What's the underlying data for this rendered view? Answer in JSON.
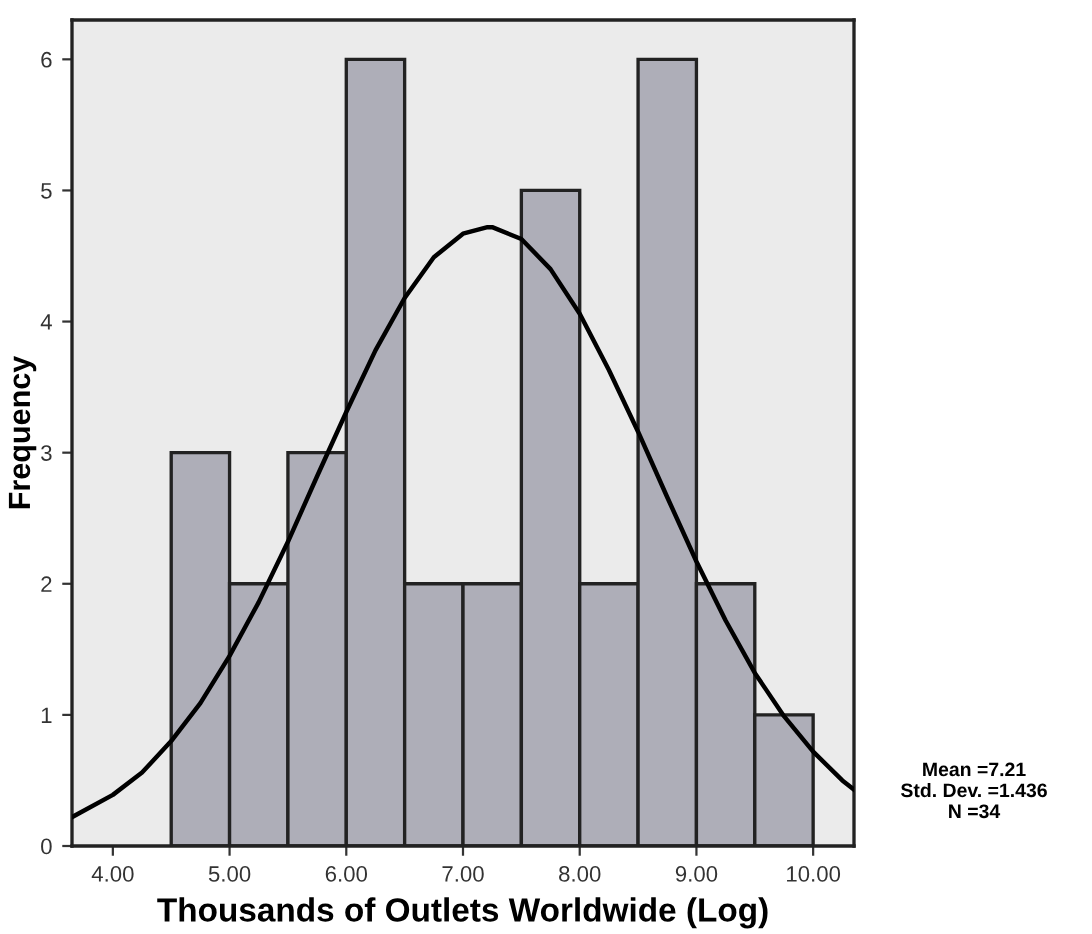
{
  "chart_data": {
    "type": "histogram",
    "xlabel": "Thousands of Outlets Worldwide (Log)",
    "ylabel": "Frequency",
    "bins": [
      4.5,
      5.0,
      5.5,
      6.0,
      6.5,
      7.0,
      7.5,
      8.0,
      8.5,
      9.0,
      9.5,
      10.0
    ],
    "values": [
      3,
      2,
      3,
      6,
      2,
      2,
      5,
      2,
      6,
      2,
      1
    ],
    "color": "#aeaeb8",
    "series": [
      {
        "type": "line",
        "color": "#000000",
        "x": [
          3.65,
          4.0,
          4.25,
          4.5,
          4.75,
          5.0,
          5.25,
          5.5,
          5.75,
          6.0,
          6.25,
          6.5,
          6.75,
          7.0,
          7.21,
          7.25,
          7.5,
          7.75,
          8.0,
          8.25,
          8.5,
          8.75,
          9.0,
          9.25,
          9.5,
          9.75,
          10.0,
          10.25,
          10.35
        ],
        "values": [
          0.22,
          0.39,
          0.56,
          0.8,
          1.09,
          1.45,
          1.86,
          2.32,
          2.82,
          3.31,
          3.78,
          4.18,
          4.49,
          4.67,
          4.72,
          4.72,
          4.63,
          4.4,
          4.06,
          3.63,
          3.16,
          2.66,
          2.17,
          1.72,
          1.32,
          0.99,
          0.72,
          0.5,
          0.43
        ]
      }
    ],
    "xlim": [
      3.65,
      10.35
    ],
    "xticks": [
      {
        "value": 4,
        "label": "4.00"
      },
      {
        "value": 5,
        "label": "5.00"
      },
      {
        "value": 6,
        "label": "6.00"
      },
      {
        "value": 7,
        "label": "7.00"
      },
      {
        "value": 8,
        "label": "8.00"
      },
      {
        "value": 9,
        "label": "9.00"
      },
      {
        "value": 10,
        "label": "10.00"
      }
    ],
    "ylim": [
      0,
      6.3
    ],
    "yticks": [
      0,
      1,
      2,
      3,
      4,
      5,
      6
    ],
    "grid": false,
    "legend": false,
    "annotations": [
      "Mean =7.21\nStd. Dev. =1.436\nN =34"
    ]
  }
}
